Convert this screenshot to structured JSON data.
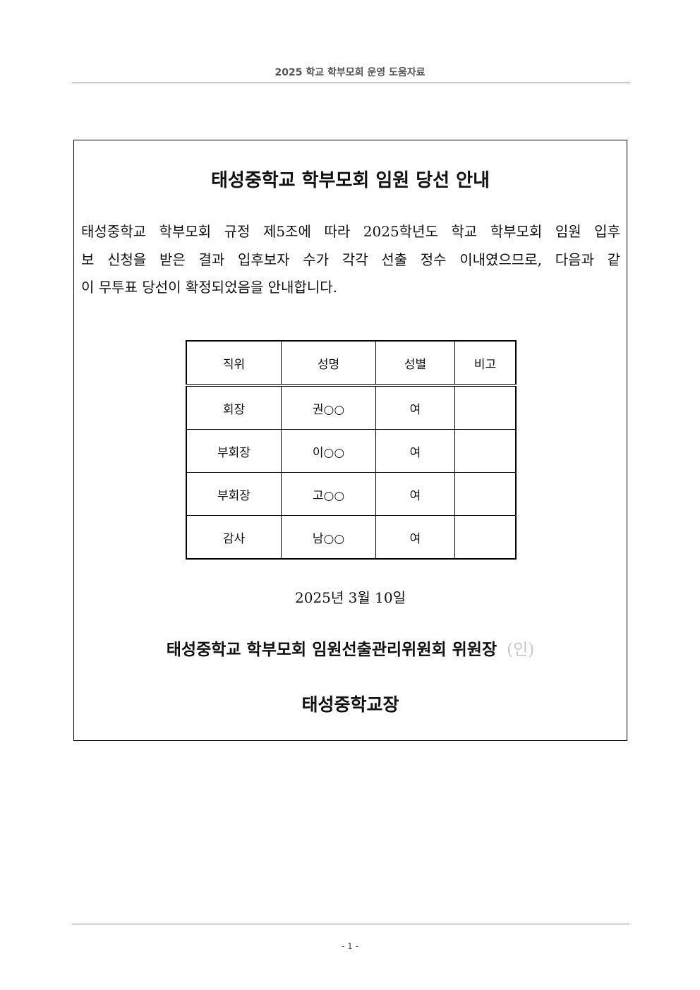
{
  "header": {
    "title": "2025 학교 학부모회 운영 도움자료"
  },
  "notice": {
    "title": "태성중학교 학부모회 임원 당선 안내",
    "body_lines": [
      " 태성중학교 학부모회 규정 제5조에 따라 2025학년도 학교 학부모회 임원 입후",
      "보 신청을 받은 결과 입후보자 수가 각각 선출 정수 이내였으므로, 다음과 같",
      "이 무투표 당선이 확정되었음을 안내합니다."
    ],
    "table": {
      "headers": [
        "직위",
        "성명",
        "성별",
        "비고"
      ],
      "rows": [
        [
          "회장",
          "권○○",
          "여",
          ""
        ],
        [
          "부회장",
          "이○○",
          "여",
          ""
        ],
        [
          "부회장",
          "고○○",
          "여",
          ""
        ],
        [
          "감사",
          "남○○",
          "여",
          ""
        ]
      ]
    },
    "date": "2025년 3월 10일",
    "signatory": "태성중학교 학부모회 임원선출관리위원회 위원장",
    "seal": "(인)",
    "principal": "태성중학교장"
  },
  "footer": {
    "page": "- 1 -"
  }
}
